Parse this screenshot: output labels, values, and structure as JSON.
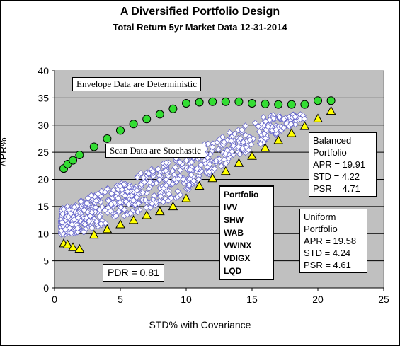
{
  "chart_data": {
    "type": "scatter",
    "title": "A Diversified Portfolio Design",
    "subtitle": "Total Return 5yr Market Data 12-31-2014",
    "xlabel": "STD% with Covariance",
    "ylabel": "APR%",
    "xlim": [
      0,
      25
    ],
    "ylim": [
      0,
      40
    ],
    "xticks": [
      "0",
      "5",
      "10",
      "15",
      "20",
      "25"
    ],
    "yticks": [
      "0",
      "5",
      "10",
      "15",
      "20",
      "25",
      "30",
      "35",
      "40"
    ],
    "plot_background": "#c0c0c0",
    "grid": "horizontal",
    "series": [
      {
        "marker": "circle",
        "color": "#33dd33",
        "x": [
          0.7,
          1.0,
          1.4,
          1.9,
          3.0,
          4.0,
          5.0,
          6.0,
          7.0,
          8.0,
          9.0,
          10.0,
          11.0,
          12.0,
          13.0,
          14.0,
          15.0,
          16.0,
          17.0,
          18.0,
          19.0,
          20.0,
          21.0
        ],
        "y": [
          22.0,
          22.8,
          23.5,
          24.5,
          26.0,
          27.5,
          29.0,
          30.2,
          31.1,
          32.0,
          33.0,
          34.0,
          34.2,
          34.3,
          34.3,
          34.3,
          34.0,
          33.9,
          33.8,
          33.8,
          33.8,
          34.5,
          34.5
        ]
      },
      {
        "marker": "triangle",
        "color": "#ffff00",
        "x": [
          0.7,
          1.0,
          1.4,
          1.9,
          3.0,
          4.0,
          5.0,
          6.0,
          7.0,
          8.0,
          9.0,
          10.0,
          11.0,
          12.0,
          13.0,
          14.0,
          15.0,
          16.0,
          17.0,
          18.0,
          19.0,
          20.0,
          21.0
        ],
        "y": [
          8.2,
          8.0,
          7.5,
          7.2,
          9.8,
          10.8,
          11.7,
          12.5,
          13.4,
          14.1,
          15.0,
          16.5,
          18.8,
          20.2,
          21.5,
          23.0,
          24.3,
          25.8,
          27.2,
          28.5,
          29.8,
          31.2,
          32.6
        ]
      },
      {
        "marker": "diamond",
        "color": "#ffffff",
        "region": "scan data between envelopes, approx. STD 0.5 to 19, APR 10 to 32"
      }
    ]
  },
  "annotations": {
    "envelope": "Envelope Data are Deterministic",
    "scan": "Scan Data are  Stochastic",
    "portfolio": [
      "Portfolio",
      "IVV",
      "SHW",
      "WAB",
      "VWINX",
      "VDIGX",
      "LQD"
    ],
    "balanced": [
      "Balanced",
      "Portfolio",
      "APR = 19.91",
      "STD = 4.22",
      "PSR = 4.71"
    ],
    "uniform": [
      "Uniform",
      "Portfolio",
      "APR = 19.58",
      "STD = 4.24",
      "PSR = 4.61"
    ],
    "pdr": "PDR = 0.81"
  }
}
